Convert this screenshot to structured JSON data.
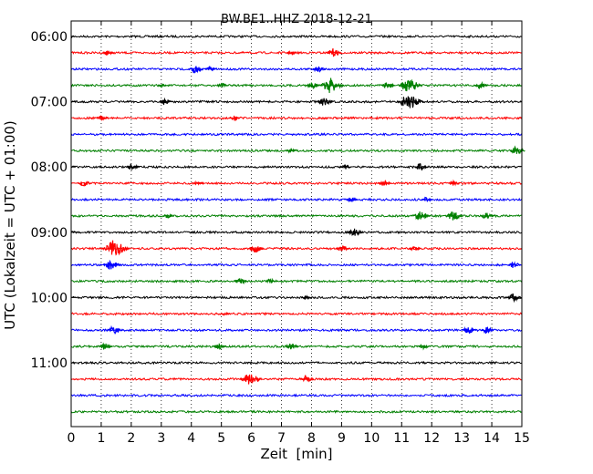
{
  "chart_data": {
    "type": "line",
    "title": "BW.BE1..HHZ 2018-12-21",
    "xlabel": "Zeit  [min]",
    "ylabel": "UTC (Lokalzeit = UTC + 01:00)",
    "xlim": [
      0,
      15
    ],
    "xticks": [
      0,
      1,
      2,
      3,
      4,
      5,
      6,
      7,
      8,
      9,
      10,
      11,
      12,
      13,
      14,
      15
    ],
    "grid": "vertical dotted",
    "row_interval_minutes": 15,
    "y_tick_labels": [
      "06:00",
      "07:00",
      "08:00",
      "09:00",
      "10:00",
      "11:00"
    ],
    "color_cycle": [
      "#000000",
      "#ff0000",
      "#0000ff",
      "#008000"
    ],
    "traces": [
      {
        "start": "06:00",
        "color": "#000000",
        "events": []
      },
      {
        "start": "06:15",
        "color": "#ff0000",
        "events": [
          {
            "t": 1.2,
            "amp": 3
          },
          {
            "t": 7.3,
            "amp": 3
          },
          {
            "t": 8.7,
            "amp": 5
          }
        ]
      },
      {
        "start": "06:30",
        "color": "#0000ff",
        "events": [
          {
            "t": 4.1,
            "amp": 5
          },
          {
            "t": 4.6,
            "amp": 3
          },
          {
            "t": 8.2,
            "amp": 4
          }
        ]
      },
      {
        "start": "06:45",
        "color": "#008000",
        "events": [
          {
            "t": 3.0,
            "amp": 2
          },
          {
            "t": 5.0,
            "amp": 3
          },
          {
            "t": 8.0,
            "amp": 4
          },
          {
            "t": 8.6,
            "amp": 9
          },
          {
            "t": 10.5,
            "amp": 4
          },
          {
            "t": 11.2,
            "amp": 9
          },
          {
            "t": 13.6,
            "amp": 4
          }
        ]
      },
      {
        "start": "07:00",
        "color": "#000000",
        "events": [
          {
            "t": 3.1,
            "amp": 4
          },
          {
            "t": 8.4,
            "amp": 5
          },
          {
            "t": 11.2,
            "amp": 10
          }
        ]
      },
      {
        "start": "07:15",
        "color": "#ff0000",
        "events": [
          {
            "t": 1.0,
            "amp": 3
          },
          {
            "t": 5.4,
            "amp": 3
          }
        ]
      },
      {
        "start": "07:30",
        "color": "#0000ff",
        "events": []
      },
      {
        "start": "07:45",
        "color": "#008000",
        "events": [
          {
            "t": 7.3,
            "amp": 3
          },
          {
            "t": 14.8,
            "amp": 5
          }
        ]
      },
      {
        "start": "08:00",
        "color": "#000000",
        "events": [
          {
            "t": 2.0,
            "amp": 4
          },
          {
            "t": 9.1,
            "amp": 3
          },
          {
            "t": 11.6,
            "amp": 4
          }
        ]
      },
      {
        "start": "08:15",
        "color": "#ff0000",
        "events": [
          {
            "t": 0.4,
            "amp": 4
          },
          {
            "t": 4.2,
            "amp": 3
          },
          {
            "t": 10.4,
            "amp": 4
          },
          {
            "t": 12.7,
            "amp": 3
          }
        ]
      },
      {
        "start": "08:30",
        "color": "#0000ff",
        "events": [
          {
            "t": 9.3,
            "amp": 3
          },
          {
            "t": 11.8,
            "amp": 3
          }
        ]
      },
      {
        "start": "08:45",
        "color": "#008000",
        "events": [
          {
            "t": 3.2,
            "amp": 3
          },
          {
            "t": 11.6,
            "amp": 6
          },
          {
            "t": 12.7,
            "amp": 6
          },
          {
            "t": 13.8,
            "amp": 4
          }
        ]
      },
      {
        "start": "09:00",
        "color": "#000000",
        "events": [
          {
            "t": 9.4,
            "amp": 5
          }
        ]
      },
      {
        "start": "09:15",
        "color": "#ff0000",
        "events": [
          {
            "t": 1.4,
            "amp": 10
          },
          {
            "t": 6.1,
            "amp": 5
          },
          {
            "t": 9.0,
            "amp": 4
          },
          {
            "t": 11.4,
            "amp": 3
          }
        ]
      },
      {
        "start": "09:30",
        "color": "#0000ff",
        "events": [
          {
            "t": 1.3,
            "amp": 6
          },
          {
            "t": 14.7,
            "amp": 4
          }
        ]
      },
      {
        "start": "09:45",
        "color": "#008000",
        "events": [
          {
            "t": 5.6,
            "amp": 4
          },
          {
            "t": 6.6,
            "amp": 3
          }
        ]
      },
      {
        "start": "10:00",
        "color": "#000000",
        "events": [
          {
            "t": 7.8,
            "amp": 3
          },
          {
            "t": 14.7,
            "amp": 5
          }
        ]
      },
      {
        "start": "10:15",
        "color": "#ff0000",
        "events": [
          {
            "t": 5.1,
            "amp": 2
          }
        ]
      },
      {
        "start": "10:30",
        "color": "#0000ff",
        "events": [
          {
            "t": 1.4,
            "amp": 5
          },
          {
            "t": 13.2,
            "amp": 5
          },
          {
            "t": 13.8,
            "amp": 4
          }
        ]
      },
      {
        "start": "10:45",
        "color": "#008000",
        "events": [
          {
            "t": 1.1,
            "amp": 4
          },
          {
            "t": 4.9,
            "amp": 4
          },
          {
            "t": 7.3,
            "amp": 4
          },
          {
            "t": 11.7,
            "amp": 3
          }
        ]
      },
      {
        "start": "11:00",
        "color": "#000000",
        "events": []
      },
      {
        "start": "11:15",
        "color": "#ff0000",
        "events": [
          {
            "t": 5.9,
            "amp": 8
          },
          {
            "t": 7.8,
            "amp": 4
          }
        ]
      },
      {
        "start": "11:30",
        "color": "#0000ff",
        "events": []
      },
      {
        "start": "11:45",
        "color": "#008000",
        "events": []
      }
    ]
  }
}
